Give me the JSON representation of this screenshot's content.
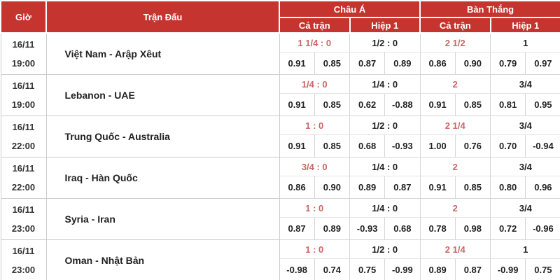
{
  "header": {
    "time": "Giờ",
    "match": "Trận Đấu",
    "asia": "Châu Á",
    "goals": "Bàn Thắng",
    "full": "Cả trận",
    "half": "Hiệp 1"
  },
  "colors": {
    "header_bg": "#c5342f",
    "header_text": "#ffffff",
    "handicap_accent_red": "#cc6666",
    "odds_text": "#222222",
    "border": "#cccccc"
  },
  "rows": [
    {
      "date": "16/11",
      "time": "19:00",
      "match": "Việt Nam - Arập Xêut",
      "asia_full": {
        "handicap": "1 1/4 : 0",
        "home": "0.91",
        "away": "0.85"
      },
      "asia_half": {
        "handicap": "1/2 : 0",
        "home": "0.87",
        "away": "0.89"
      },
      "goals_full": {
        "handicap": "2 1/2",
        "home": "0.86",
        "away": "0.90"
      },
      "goals_half": {
        "handicap": "1",
        "home": "0.79",
        "away": "0.97"
      }
    },
    {
      "date": "16/11",
      "time": "19:00",
      "match": "Lebanon - UAE",
      "asia_full": {
        "handicap": "1/4 : 0",
        "home": "0.91",
        "away": "0.85"
      },
      "asia_half": {
        "handicap": "1/4 : 0",
        "home": "0.62",
        "away": "-0.88"
      },
      "goals_full": {
        "handicap": "2",
        "home": "0.91",
        "away": "0.85"
      },
      "goals_half": {
        "handicap": "3/4",
        "home": "0.81",
        "away": "0.95"
      }
    },
    {
      "date": "16/11",
      "time": "22:00",
      "match": "Trung Quốc - Australia",
      "asia_full": {
        "handicap": "1 : 0",
        "home": "0.91",
        "away": "0.85"
      },
      "asia_half": {
        "handicap": "1/2 : 0",
        "home": "0.68",
        "away": "-0.93"
      },
      "goals_full": {
        "handicap": "2 1/4",
        "home": "1.00",
        "away": "0.76"
      },
      "goals_half": {
        "handicap": "3/4",
        "home": "0.70",
        "away": "-0.94"
      }
    },
    {
      "date": "16/11",
      "time": "22:00",
      "match": "Iraq - Hàn Quốc",
      "asia_full": {
        "handicap": "3/4 : 0",
        "home": "0.86",
        "away": "0.90"
      },
      "asia_half": {
        "handicap": "1/4 : 0",
        "home": "0.89",
        "away": "0.87"
      },
      "goals_full": {
        "handicap": "2",
        "home": "0.91",
        "away": "0.85"
      },
      "goals_half": {
        "handicap": "3/4",
        "home": "0.80",
        "away": "0.96"
      }
    },
    {
      "date": "16/11",
      "time": "23:00",
      "match": "Syria - Iran",
      "asia_full": {
        "handicap": "1 : 0",
        "home": "0.87",
        "away": "0.89"
      },
      "asia_half": {
        "handicap": "1/4 : 0",
        "home": "-0.93",
        "away": "0.68"
      },
      "goals_full": {
        "handicap": "2",
        "home": "0.78",
        "away": "0.98"
      },
      "goals_half": {
        "handicap": "3/4",
        "home": "0.72",
        "away": "-0.96"
      }
    },
    {
      "date": "16/11",
      "time": "23:00",
      "match": "Oman - Nhật Bản",
      "asia_full": {
        "handicap": "1 : 0",
        "home": "-0.98",
        "away": "0.74"
      },
      "asia_half": {
        "handicap": "1/2 : 0",
        "home": "0.75",
        "away": "-0.99"
      },
      "goals_full": {
        "handicap": "2 1/4",
        "home": "0.89",
        "away": "0.87"
      },
      "goals_half": {
        "handicap": "1",
        "home": "-0.99",
        "away": "0.75"
      }
    }
  ]
}
